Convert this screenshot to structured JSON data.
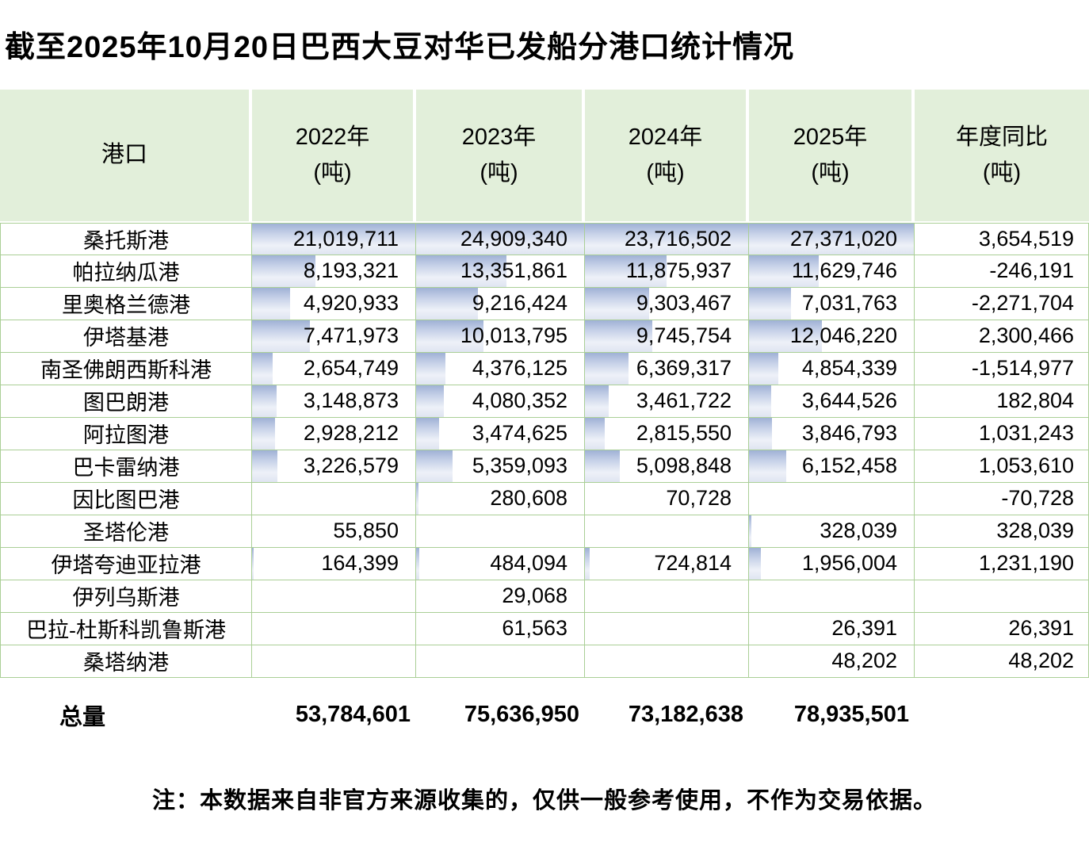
{
  "title": "截至2025年10月20日巴西大豆对华已发船分港口统计情况",
  "note": "注：本数据来自非官方来源收集的，仅供一般参考使用，不作为交易依据。",
  "colors": {
    "header_bg": "#e2efda",
    "grid_border": "#aacf96",
    "bar_gradient_top": "#9fb1d5",
    "bar_gradient_bottom": "#dfe5f1"
  },
  "table": {
    "headers": [
      {
        "title": "港口",
        "unit": ""
      },
      {
        "title": "2022年",
        "unit": "(吨)"
      },
      {
        "title": "2023年",
        "unit": "(吨)"
      },
      {
        "title": "2024年",
        "unit": "(吨)"
      },
      {
        "title": "2025年",
        "unit": "(吨)"
      },
      {
        "title": "年度同比",
        "unit": "(吨)"
      }
    ],
    "rows": [
      {
        "port": "桑托斯港",
        "cells": [
          {
            "text": "21,019,711",
            "bar": 100
          },
          {
            "text": "24,909,340",
            "bar": 100
          },
          {
            "text": "23,716,502",
            "bar": 100
          },
          {
            "text": "27,371,020",
            "bar": 100
          }
        ],
        "yoy": "3,654,519"
      },
      {
        "port": "帕拉纳瓜港",
        "cells": [
          {
            "text": "8,193,321",
            "bar": 39.0
          },
          {
            "text": "13,351,861",
            "bar": 53.6
          },
          {
            "text": "11,875,937",
            "bar": 50.1
          },
          {
            "text": "11,629,746",
            "bar": 42.5
          }
        ],
        "yoy": "-246,191"
      },
      {
        "port": "里奥格兰德港",
        "cells": [
          {
            "text": "4,920,933",
            "bar": 23.4
          },
          {
            "text": "9,216,424",
            "bar": 37.0
          },
          {
            "text": "9,303,467",
            "bar": 39.2
          },
          {
            "text": "7,031,763",
            "bar": 25.7
          }
        ],
        "yoy": "-2,271,704"
      },
      {
        "port": "伊塔基港",
        "cells": [
          {
            "text": "7,471,973",
            "bar": 35.5
          },
          {
            "text": "10,013,795",
            "bar": 40.2
          },
          {
            "text": "9,745,754",
            "bar": 41.1
          },
          {
            "text": "12,046,220",
            "bar": 44.0
          }
        ],
        "yoy": "2,300,466"
      },
      {
        "port": "南圣佛朗西斯科港",
        "cells": [
          {
            "text": "2,654,749",
            "bar": 12.6
          },
          {
            "text": "4,376,125",
            "bar": 17.6
          },
          {
            "text": "6,369,317",
            "bar": 26.9
          },
          {
            "text": "4,854,339",
            "bar": 17.7
          }
        ],
        "yoy": "-1,514,977"
      },
      {
        "port": "图巴朗港",
        "cells": [
          {
            "text": "3,148,873",
            "bar": 15.0
          },
          {
            "text": "4,080,352",
            "bar": 16.4
          },
          {
            "text": "3,461,722",
            "bar": 14.6
          },
          {
            "text": "3,644,526",
            "bar": 13.3
          }
        ],
        "yoy": "182,804"
      },
      {
        "port": "阿拉图港",
        "cells": [
          {
            "text": "2,928,212",
            "bar": 13.9
          },
          {
            "text": "3,474,625",
            "bar": 13.9
          },
          {
            "text": "2,815,550",
            "bar": 11.9
          },
          {
            "text": "3,846,793",
            "bar": 14.1
          }
        ],
        "yoy": "1,031,243"
      },
      {
        "port": "巴卡雷纳港",
        "cells": [
          {
            "text": "3,226,579",
            "bar": 15.4
          },
          {
            "text": "5,359,093",
            "bar": 21.5
          },
          {
            "text": "5,098,848",
            "bar": 21.5
          },
          {
            "text": "6,152,458",
            "bar": 22.5
          }
        ],
        "yoy": "1,053,610"
      },
      {
        "port": "因比图巴港",
        "cells": [
          {
            "text": "",
            "bar": 0
          },
          {
            "text": "280,608",
            "bar": 1.6
          },
          {
            "text": "70,728",
            "bar": 0
          },
          {
            "text": "",
            "bar": 0
          }
        ],
        "yoy": "-70,728"
      },
      {
        "port": "圣塔伦港",
        "cells": [
          {
            "text": "55,850",
            "bar": 0
          },
          {
            "text": "",
            "bar": 0
          },
          {
            "text": "",
            "bar": 0
          },
          {
            "text": "328,039",
            "bar": 1.6
          }
        ],
        "yoy": "328,039"
      },
      {
        "port": "伊塔夸迪亚拉港",
        "cells": [
          {
            "text": "164,399",
            "bar": 1.0
          },
          {
            "text": "484,094",
            "bar": 1.9
          },
          {
            "text": "724,814",
            "bar": 3.1
          },
          {
            "text": "1,956,004",
            "bar": 7.1
          }
        ],
        "yoy": "1,231,190"
      },
      {
        "port": "伊列乌斯港",
        "cells": [
          {
            "text": "",
            "bar": 0
          },
          {
            "text": "29,068",
            "bar": 0
          },
          {
            "text": "",
            "bar": 0
          },
          {
            "text": "",
            "bar": 0
          }
        ],
        "yoy": ""
      },
      {
        "port": "巴拉-杜斯科凯鲁斯港",
        "cells": [
          {
            "text": "",
            "bar": 0
          },
          {
            "text": "61,563",
            "bar": 0
          },
          {
            "text": "",
            "bar": 0
          },
          {
            "text": "26,391",
            "bar": 0
          }
        ],
        "yoy": "26,391"
      },
      {
        "port": "桑塔纳港",
        "cells": [
          {
            "text": "",
            "bar": 0
          },
          {
            "text": "",
            "bar": 0
          },
          {
            "text": "",
            "bar": 0
          },
          {
            "text": "48,202",
            "bar": 0
          }
        ],
        "yoy": "48,202"
      }
    ],
    "totals": {
      "label": "总量",
      "values": [
        "53,784,601",
        "75,636,950",
        "73,182,638",
        "78,935,501"
      ],
      "yoy": ""
    }
  },
  "chart_data": {
    "type": "table",
    "title": "截至2025年10月20日巴西大豆对华已发船分港口统计情况",
    "columns": [
      "港口",
      "2022年(吨)",
      "2023年(吨)",
      "2024年(吨)",
      "2025年(吨)",
      "年度同比(吨)"
    ],
    "rows": [
      [
        "桑托斯港",
        21019711,
        24909340,
        23716502,
        27371020,
        3654519
      ],
      [
        "帕拉纳瓜港",
        8193321,
        13351861,
        11875937,
        11629746,
        -246191
      ],
      [
        "里奥格兰德港",
        4920933,
        9216424,
        9303467,
        7031763,
        -2271704
      ],
      [
        "伊塔基港",
        7471973,
        10013795,
        9745754,
        12046220,
        2300466
      ],
      [
        "南圣佛朗西斯科港",
        2654749,
        4376125,
        6369317,
        4854339,
        -1514977
      ],
      [
        "图巴朗港",
        3148873,
        4080352,
        3461722,
        3644526,
        182804
      ],
      [
        "阿拉图港",
        2928212,
        3474625,
        2815550,
        3846793,
        1031243
      ],
      [
        "巴卡雷纳港",
        3226579,
        5359093,
        5098848,
        6152458,
        1053610
      ],
      [
        "因比图巴港",
        null,
        280608,
        70728,
        null,
        -70728
      ],
      [
        "圣塔伦港",
        55850,
        null,
        null,
        328039,
        328039
      ],
      [
        "伊塔夸迪亚拉港",
        164399,
        484094,
        724814,
        1956004,
        1231190
      ],
      [
        "伊列乌斯港",
        null,
        29068,
        null,
        null,
        null
      ],
      [
        "巴拉-杜斯科凯鲁斯港",
        null,
        61563,
        null,
        26391,
        26391
      ],
      [
        "桑塔纳港",
        null,
        null,
        null,
        48202,
        48202
      ]
    ],
    "totals": [
      "总量",
      53784601,
      75636950,
      73182638,
      78935501,
      null
    ],
    "layout_hints": {
      "data_bars": "per-column gradient blue data bars scaled to column max",
      "grid": "light green borders",
      "header_fill": "light green"
    }
  }
}
